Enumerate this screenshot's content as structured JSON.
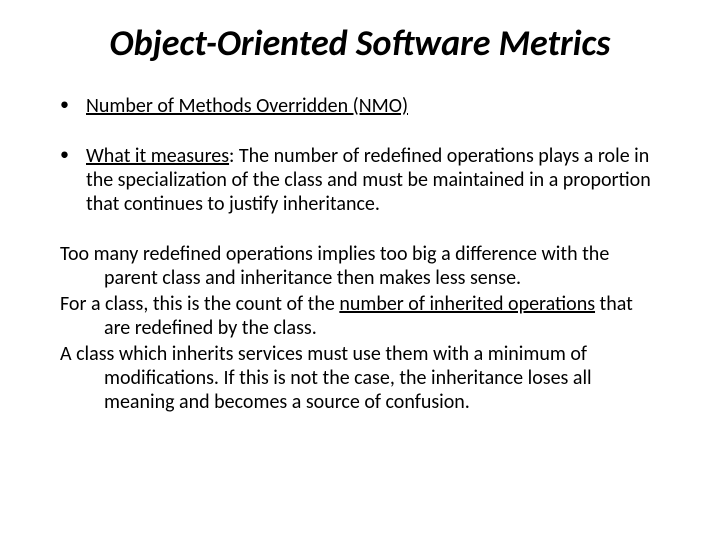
{
  "title": "Object-Oriented Software Metrics",
  "bullet1_underlined": "Number of Methods Overridden (NMO)",
  "bullet2_underlined_prefix": "What it measures",
  "bullet2_rest": ": The number of redefined operations plays a role in the specialization of the class and must be maintained in a proportion that continues to justify inheritance.",
  "para1": "Too many redefined operations implies too big a difference with the parent class and inheritance then makes less sense.",
  "para2_prefix": "For a class, this is the count of the ",
  "para2_underlined": "number of inherited operations",
  "para2_suffix": " that are redefined by the class.",
  "para3": "A class which inherits services must use them with a minimum of modifications.  If this is not the case, the inheritance loses all meaning and becomes a source of confusion.",
  "colors": {
    "text": "#000000",
    "background": "#ffffff"
  },
  "fonts": {
    "title_size_pt": 36,
    "body_size_pt": 20,
    "family": "Calibri"
  }
}
